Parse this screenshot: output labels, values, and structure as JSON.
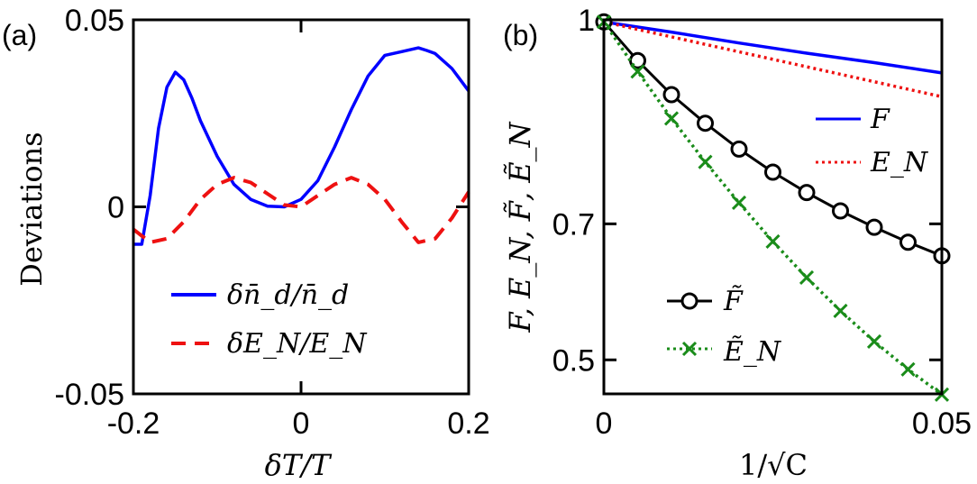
{
  "chart_data": [
    {
      "panel_label": "(a)",
      "type": "line",
      "xlabel": "δT/T",
      "ylabel": "Deviations",
      "xlim": [
        -0.2,
        0.2
      ],
      "ylim": [
        -0.05,
        0.05
      ],
      "xticks": [
        {
          "value": -0.2,
          "label": "-0.2"
        },
        {
          "value": 0,
          "label": "0"
        },
        {
          "value": 0.2,
          "label": "0.2"
        }
      ],
      "yticks": [
        {
          "value": 0.05,
          "label": "0.05"
        },
        {
          "value": 0,
          "label": "0"
        },
        {
          "value": -0.05,
          "label": "-0.05"
        }
      ],
      "series": [
        {
          "name": "δn̄d/n̄d",
          "legend": "δn̄_d/n̄_d",
          "color": "#0000ff",
          "style": "solid",
          "x": [
            -0.2,
            -0.19,
            -0.18,
            -0.17,
            -0.16,
            -0.15,
            -0.14,
            -0.13,
            -0.12,
            -0.1,
            -0.08,
            -0.06,
            -0.04,
            -0.02,
            0,
            0.02,
            0.04,
            0.06,
            0.08,
            0.1,
            0.12,
            0.14,
            0.15,
            0.16,
            0.18,
            0.2
          ],
          "y": [
            -0.01,
            -0.01,
            0.003,
            0.021,
            0.032,
            0.036,
            0.034,
            0.029,
            0.023,
            0.0135,
            0.006,
            0.002,
            0.0002,
            0.0,
            0.002,
            0.007,
            0.016,
            0.026,
            0.035,
            0.0405,
            0.0415,
            0.0425,
            0.0418,
            0.041,
            0.037,
            0.031
          ]
        },
        {
          "name": "δE_N/E_N",
          "legend": "δE_N/E_N",
          "color": "#ee1111",
          "style": "dashed",
          "x": [
            -0.2,
            -0.18,
            -0.16,
            -0.14,
            -0.12,
            -0.1,
            -0.08,
            -0.06,
            -0.04,
            -0.02,
            0,
            0.02,
            0.04,
            0.06,
            0.08,
            0.1,
            0.12,
            0.14,
            0.16,
            0.18,
            0.2
          ],
          "y": [
            -0.006,
            -0.0095,
            -0.0085,
            -0.004,
            0.002,
            0.006,
            0.0078,
            0.0065,
            0.0035,
            0.0005,
            0.0,
            0.003,
            0.006,
            0.0078,
            0.006,
            0.002,
            -0.004,
            -0.0095,
            -0.0085,
            -0.003,
            0.004
          ]
        }
      ]
    },
    {
      "panel_label": "(b)",
      "type": "line",
      "xlabel": "1/√C",
      "ylabel": "F, E_N, F̃, Ẽ_N",
      "xlim": [
        0,
        0.05
      ],
      "ylim": [
        0.45,
        1.0
      ],
      "xticks": [
        {
          "value": 0,
          "label": "0"
        },
        {
          "value": 0.05,
          "label": "0.05"
        }
      ],
      "yticks": [
        {
          "value": 1.0,
          "label": "1"
        },
        {
          "value": 0.7,
          "label": "0.7"
        },
        {
          "value": 0.5,
          "label": "0.5"
        }
      ],
      "series": [
        {
          "name": "F",
          "color": "#0000ff",
          "style": "solid",
          "marker": "none",
          "x": [
            0,
            0.01,
            0.02,
            0.03,
            0.04,
            0.05
          ],
          "y": [
            0.997,
            0.982,
            0.966,
            0.951,
            0.937,
            0.922
          ]
        },
        {
          "name": "E_N",
          "color": "#ee1111",
          "style": "dotted",
          "marker": "none",
          "x": [
            0,
            0.01,
            0.02,
            0.03,
            0.04,
            0.05
          ],
          "y": [
            0.997,
            0.975,
            0.953,
            0.931,
            0.909,
            0.887
          ]
        },
        {
          "name": "F̃",
          "color": "#000000",
          "style": "solid",
          "marker": "circle",
          "x": [
            0,
            0.005,
            0.01,
            0.015,
            0.02,
            0.025,
            0.03,
            0.035,
            0.04,
            0.045,
            0.05
          ],
          "y": [
            0.997,
            0.94,
            0.89,
            0.848,
            0.81,
            0.776,
            0.746,
            0.719,
            0.695,
            0.673,
            0.653
          ]
        },
        {
          "name": "Ẽ_N",
          "color": "#1a8c1a",
          "style": "dotted",
          "marker": "x",
          "x": [
            0,
            0.005,
            0.01,
            0.015,
            0.02,
            0.025,
            0.03,
            0.035,
            0.04,
            0.045,
            0.05
          ],
          "y": [
            0.997,
            0.924,
            0.855,
            0.791,
            0.731,
            0.674,
            0.621,
            0.572,
            0.527,
            0.486,
            0.449
          ]
        }
      ]
    }
  ]
}
